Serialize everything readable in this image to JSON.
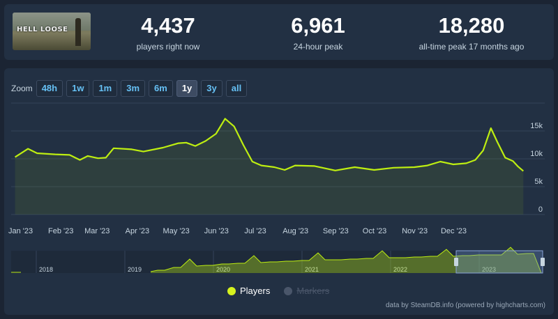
{
  "game": {
    "logo_text": "HELL LOOSE"
  },
  "stats": [
    {
      "value": "4,437",
      "label": "players right now"
    },
    {
      "value": "6,961",
      "label": "24-hour peak"
    },
    {
      "value": "18,280",
      "label": "all-time peak 17 months ago"
    }
  ],
  "zoom": {
    "label": "Zoom",
    "options": [
      "48h",
      "1w",
      "1m",
      "3m",
      "6m",
      "1y",
      "3y",
      "all"
    ],
    "selected": "1y"
  },
  "colors": {
    "series": "#beee11",
    "accent": "#66c0f4",
    "background": "#1b2433",
    "panel": "#223043"
  },
  "legend": {
    "players_label": "Players",
    "markers_label": "Markers"
  },
  "credits": "data by SteamDB.info (powered by highcharts.com)",
  "chart_data": {
    "type": "line",
    "series": [
      {
        "name": "Players",
        "points": [
          [
            "2023-01-01",
            10300
          ],
          [
            "2023-01-11",
            11800
          ],
          [
            "2023-01-18",
            11000
          ],
          [
            "2023-02-01",
            10800
          ],
          [
            "2023-02-12",
            10700
          ],
          [
            "2023-02-20",
            9800
          ],
          [
            "2023-02-26",
            10500
          ],
          [
            "2023-03-06",
            10100
          ],
          [
            "2023-03-12",
            10200
          ],
          [
            "2023-03-18",
            11900
          ],
          [
            "2023-04-01",
            11700
          ],
          [
            "2023-04-10",
            11300
          ],
          [
            "2023-04-25",
            12000
          ],
          [
            "2023-05-07",
            12800
          ],
          [
            "2023-05-13",
            12900
          ],
          [
            "2023-05-20",
            12300
          ],
          [
            "2023-05-28",
            13200
          ],
          [
            "2023-06-05",
            14500
          ],
          [
            "2023-06-12",
            17200
          ],
          [
            "2023-06-19",
            15800
          ],
          [
            "2023-06-26",
            12500
          ],
          [
            "2023-07-03",
            9500
          ],
          [
            "2023-07-10",
            8800
          ],
          [
            "2023-07-20",
            8500
          ],
          [
            "2023-07-28",
            8000
          ],
          [
            "2023-08-05",
            8800
          ],
          [
            "2023-08-20",
            8700
          ],
          [
            "2023-09-05",
            7900
          ],
          [
            "2023-09-20",
            8500
          ],
          [
            "2023-10-05",
            8000
          ],
          [
            "2023-10-20",
            8400
          ],
          [
            "2023-11-05",
            8500
          ],
          [
            "2023-11-15",
            8800
          ],
          [
            "2023-11-25",
            9500
          ],
          [
            "2023-12-05",
            9000
          ],
          [
            "2023-12-15",
            9200
          ],
          [
            "2023-12-22",
            9800
          ],
          [
            "2023-12-28",
            11500
          ],
          [
            "2024-01-03",
            15500
          ],
          [
            "2024-01-08",
            13000
          ],
          [
            "2024-01-14",
            10200
          ],
          [
            "2024-01-20",
            9600
          ],
          [
            "2024-01-24",
            8600
          ],
          [
            "2024-01-28",
            7800
          ]
        ]
      }
    ],
    "x_tick_labels": [
      "Jan '23",
      "Feb '23",
      "Mar '23",
      "Apr '23",
      "May '23",
      "Jun '23",
      "Jul '23",
      "Aug '23",
      "Sep '23",
      "Oct '23",
      "Nov '23",
      "Dec '23"
    ],
    "y_tick_labels": [
      "0",
      "5k",
      "10k",
      "15k"
    ],
    "y_ticks": [
      0,
      5000,
      10000,
      15000
    ],
    "xlim": [
      "2022-12-29",
      "2024-01-30"
    ],
    "ylim": [
      0,
      20000
    ],
    "grid": true,
    "navigator": {
      "year_labels": [
        "2018",
        "2019",
        "2020",
        "2021",
        "2022",
        "2023"
      ],
      "selected_range": "last 1y"
    }
  }
}
